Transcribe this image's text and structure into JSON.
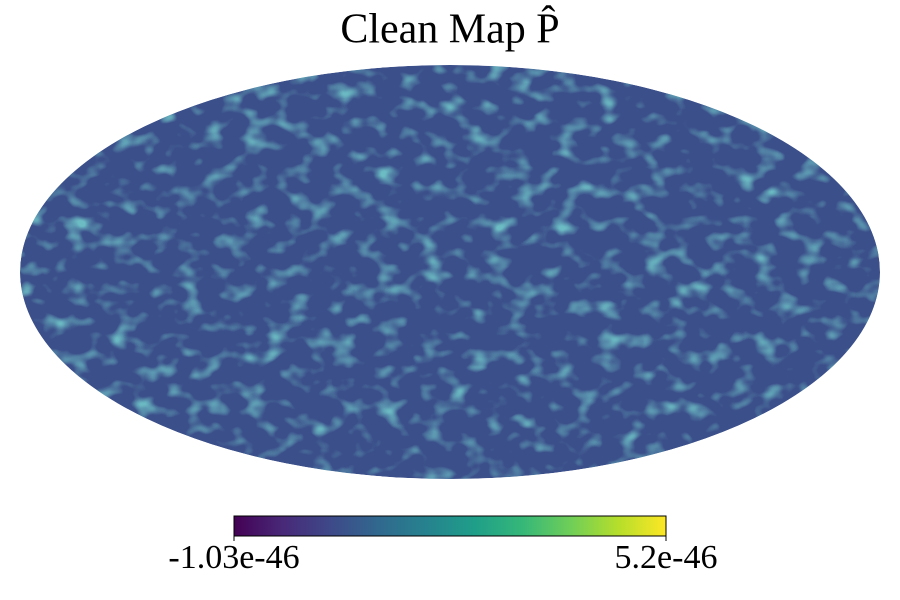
{
  "chart_data": {
    "type": "mollweide",
    "title": "Clean Map P̂",
    "colorbar": {
      "lim": [
        -1.03e-46,
        5.2e-46
      ],
      "ticks": [
        -1.03e-46,
        5.2e-46
      ],
      "colormap": "viridis"
    }
  }
}
